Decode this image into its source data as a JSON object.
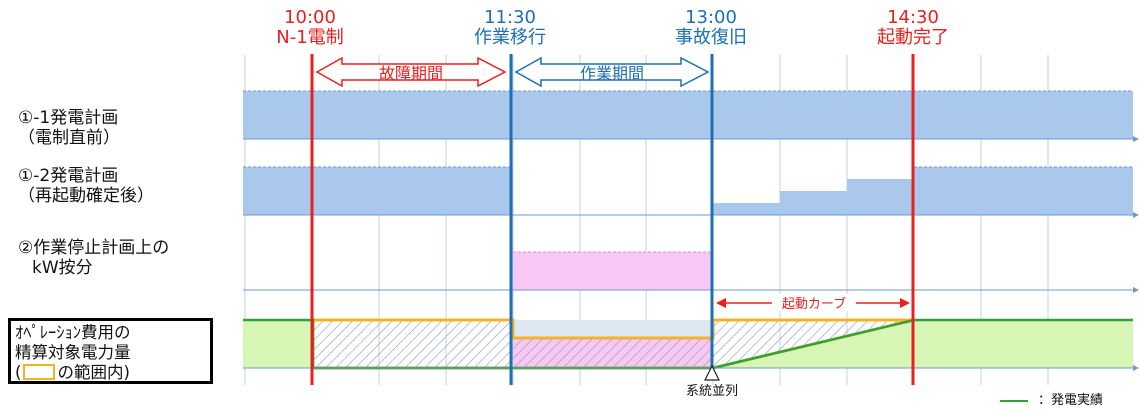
{
  "timeline": [
    {
      "time": "10:00",
      "event": "N-1電制",
      "color": "#e8201e"
    },
    {
      "time": "11:30",
      "event": "作業移行",
      "color": "#1e6fb4"
    },
    {
      "time": "13:00",
      "event": "事故復旧",
      "color": "#1e6fb4"
    },
    {
      "time": "14:30",
      "event": "起動完了",
      "color": "#e8201e"
    }
  ],
  "periods": {
    "fault": "故障期間",
    "work": "作業期間",
    "startup_curve": "起動カーブ"
  },
  "rows": [
    {
      "line1": "①-1発電計画",
      "line2": "（電制直前）"
    },
    {
      "line1": "①-2発電計画",
      "line2": "（再起動確定後）"
    },
    {
      "line1": "②作業停止計画上の",
      "line2": "kW按分"
    }
  ],
  "ops_box": {
    "line1": "ｵﾍﾟﾚｰｼｮﾝ費用の",
    "line2": "精算対象電力量",
    "line3_prefix": "(",
    "line3_suffix": "の範囲内)"
  },
  "marker": "系統並列",
  "legend": "：発電実績",
  "colors": {
    "plan_fill": "#a9c8ec",
    "allocation_fill": "#f9c7f3",
    "actual_fill": "#d7f5b5",
    "actual_line": "#2fa33a",
    "settlement_outline": "#f5b324",
    "red_line": "#e8201e",
    "blue_line": "#1e6fb4"
  }
}
